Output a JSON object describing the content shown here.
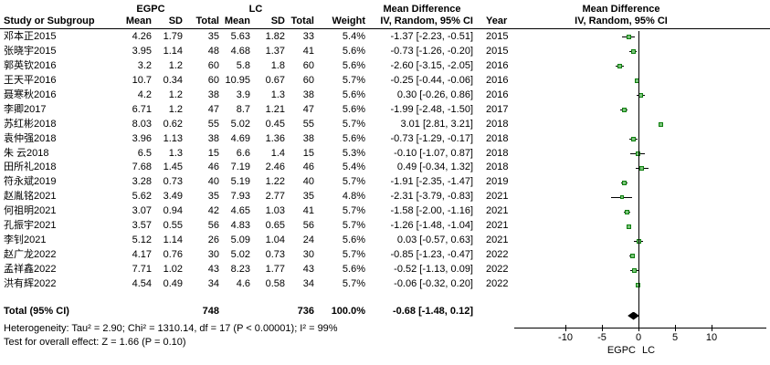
{
  "header": {
    "group1": "EGPC",
    "group2": "LC",
    "md": "Mean Difference",
    "study": "Study or Subgroup",
    "mean": "Mean",
    "sd": "SD",
    "total": "Total",
    "weight": "Weight",
    "ci": "IV, Random, 95% CI",
    "year": "Year"
  },
  "total": {
    "label": "Total (95% CI)",
    "n1": "748",
    "n2": "736",
    "weight": "100.0%",
    "ci_text": "-0.68 [-1.48, 0.12]",
    "md": -0.68,
    "lo": -1.48,
    "hi": 0.12
  },
  "footer": {
    "heterogeneity": "Heterogeneity: Tau² = 2.90; Chi² = 1310.14, df = 17 (P < 0.00001); I² = 99%",
    "overall_effect": "Test for overall effect: Z = 1.66 (P = 0.10)"
  },
  "chart_data": {
    "type": "scatter",
    "title": "Mean Difference — IV, Random, 95% CI forest plot",
    "xlabel": "Mean Difference",
    "x_ticks": [
      -10,
      -5,
      0,
      5,
      10
    ],
    "xlim": [
      -17,
      17.5
    ],
    "grid": false,
    "left_label": "EGPC",
    "right_label": "LC",
    "marker_color": "#3aa03a",
    "diamond_color": "#000000",
    "studies": [
      {
        "name": "邓本正2015",
        "m1": "4.26",
        "sd1": "1.79",
        "n1": "35",
        "m2": "5.63",
        "sd2": "1.82",
        "n2": "33",
        "weight": "5.4%",
        "ci_text": "-1.37 [-2.23, -0.51]",
        "year": "2015",
        "md": -1.37,
        "lo": -2.23,
        "hi": -0.51
      },
      {
        "name": "张晓宇2015",
        "m1": "3.95",
        "sd1": "1.14",
        "n1": "48",
        "m2": "4.68",
        "sd2": "1.37",
        "n2": "41",
        "weight": "5.6%",
        "ci_text": "-0.73 [-1.26, -0.20]",
        "year": "2015",
        "md": -0.73,
        "lo": -1.26,
        "hi": -0.2
      },
      {
        "name": "郭英钦2016",
        "m1": "3.2",
        "sd1": "1.2",
        "n1": "60",
        "m2": "5.8",
        "sd2": "1.8",
        "n2": "60",
        "weight": "5.6%",
        "ci_text": "-2.60 [-3.15, -2.05]",
        "year": "2016",
        "md": -2.6,
        "lo": -3.15,
        "hi": -2.05
      },
      {
        "name": "王天平2016",
        "m1": "10.7",
        "sd1": "0.34",
        "n1": "60",
        "m2": "10.95",
        "sd2": "0.67",
        "n2": "60",
        "weight": "5.7%",
        "ci_text": "-0.25 [-0.44, -0.06]",
        "year": "2016",
        "md": -0.25,
        "lo": -0.44,
        "hi": -0.06
      },
      {
        "name": "聂寒秋2016",
        "m1": "4.2",
        "sd1": "1.2",
        "n1": "38",
        "m2": "3.9",
        "sd2": "1.3",
        "n2": "38",
        "weight": "5.6%",
        "ci_text": "0.30 [-0.26, 0.86]",
        "year": "2016",
        "md": 0.3,
        "lo": -0.26,
        "hi": 0.86
      },
      {
        "name": "李卿2017",
        "m1": "6.71",
        "sd1": "1.2",
        "n1": "47",
        "m2": "8.7",
        "sd2": "1.21",
        "n2": "47",
        "weight": "5.6%",
        "ci_text": "-1.99 [-2.48, -1.50]",
        "year": "2017",
        "md": -1.99,
        "lo": -2.48,
        "hi": -1.5
      },
      {
        "name": "苏红彬2018",
        "m1": "8.03",
        "sd1": "0.62",
        "n1": "55",
        "m2": "5.02",
        "sd2": "0.45",
        "n2": "55",
        "weight": "5.7%",
        "ci_text": "3.01 [2.81, 3.21]",
        "year": "2018",
        "md": 3.01,
        "lo": 2.81,
        "hi": 3.21
      },
      {
        "name": "袁仲强2018",
        "m1": "3.96",
        "sd1": "1.13",
        "n1": "38",
        "m2": "4.69",
        "sd2": "1.36",
        "n2": "38",
        "weight": "5.6%",
        "ci_text": "-0.73 [-1.29, -0.17]",
        "year": "2018",
        "md": -0.73,
        "lo": -1.29,
        "hi": -0.17
      },
      {
        "name": "朱 云2018",
        "m1": "6.5",
        "sd1": "1.3",
        "n1": "15",
        "m2": "6.6",
        "sd2": "1.4",
        "n2": "15",
        "weight": "5.3%",
        "ci_text": "-0.10 [-1.07, 0.87]",
        "year": "2018",
        "md": -0.1,
        "lo": -1.07,
        "hi": 0.87
      },
      {
        "name": "田所礼2018",
        "m1": "7.68",
        "sd1": "1.45",
        "n1": "46",
        "m2": "7.19",
        "sd2": "2.46",
        "n2": "46",
        "weight": "5.4%",
        "ci_text": "0.49 [-0.34, 1.32]",
        "year": "2018",
        "md": 0.49,
        "lo": -0.34,
        "hi": 1.32
      },
      {
        "name": "符永斌2019",
        "m1": "3.28",
        "sd1": "0.73",
        "n1": "40",
        "m2": "5.19",
        "sd2": "1.22",
        "n2": "40",
        "weight": "5.7%",
        "ci_text": "-1.91 [-2.35, -1.47]",
        "year": "2019",
        "md": -1.91,
        "lo": -2.35,
        "hi": -1.47
      },
      {
        "name": "赵胤铭2021",
        "m1": "5.62",
        "sd1": "3.49",
        "n1": "35",
        "m2": "7.93",
        "sd2": "2.77",
        "n2": "35",
        "weight": "4.8%",
        "ci_text": "-2.31 [-3.79, -0.83]",
        "year": "2021",
        "md": -2.31,
        "lo": -3.79,
        "hi": -0.83
      },
      {
        "name": "何祖明2021",
        "m1": "3.07",
        "sd1": "0.94",
        "n1": "42",
        "m2": "4.65",
        "sd2": "1.03",
        "n2": "41",
        "weight": "5.7%",
        "ci_text": "-1.58 [-2.00, -1.16]",
        "year": "2021",
        "md": -1.58,
        "lo": -2.0,
        "hi": -1.16
      },
      {
        "name": "孔振宇2021",
        "m1": "3.57",
        "sd1": "0.55",
        "n1": "56",
        "m2": "4.83",
        "sd2": "0.65",
        "n2": "56",
        "weight": "5.7%",
        "ci_text": "-1.26 [-1.48, -1.04]",
        "year": "2021",
        "md": -1.26,
        "lo": -1.48,
        "hi": -1.04
      },
      {
        "name": "李钊2021",
        "m1": "5.12",
        "sd1": "1.14",
        "n1": "26",
        "m2": "5.09",
        "sd2": "1.04",
        "n2": "24",
        "weight": "5.6%",
        "ci_text": "0.03 [-0.57, 0.63]",
        "year": "2021",
        "md": 0.03,
        "lo": -0.57,
        "hi": 0.63
      },
      {
        "name": "赵广龙2022",
        "m1": "4.17",
        "sd1": "0.76",
        "n1": "30",
        "m2": "5.02",
        "sd2": "0.73",
        "n2": "30",
        "weight": "5.7%",
        "ci_text": "-0.85 [-1.23, -0.47]",
        "year": "2022",
        "md": -0.85,
        "lo": -1.23,
        "hi": -0.47
      },
      {
        "name": "孟祥鑫2022",
        "m1": "7.71",
        "sd1": "1.02",
        "n1": "43",
        "m2": "8.23",
        "sd2": "1.77",
        "n2": "43",
        "weight": "5.6%",
        "ci_text": "-0.52 [-1.13, 0.09]",
        "year": "2022",
        "md": -0.52,
        "lo": -1.13,
        "hi": 0.09
      },
      {
        "name": "洪有辉2022",
        "m1": "4.54",
        "sd1": "0.49",
        "n1": "34",
        "m2": "4.6",
        "sd2": "0.58",
        "n2": "34",
        "weight": "5.7%",
        "ci_text": "-0.06 [-0.32, 0.20]",
        "year": "2022",
        "md": -0.06,
        "lo": -0.32,
        "hi": 0.2
      }
    ]
  }
}
